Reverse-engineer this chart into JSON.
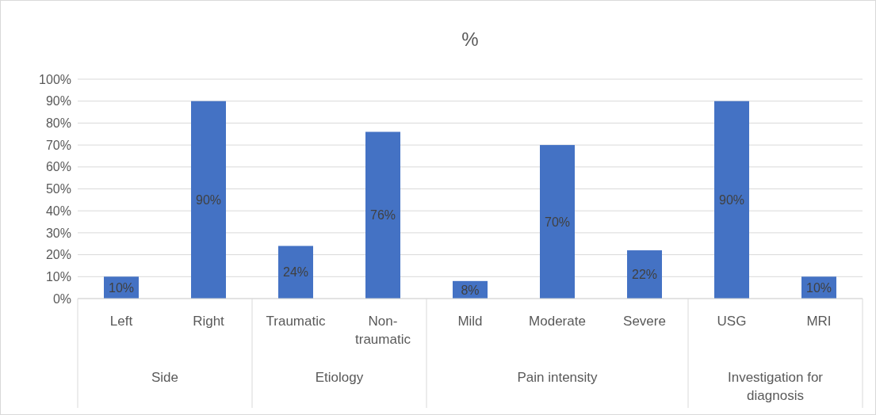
{
  "chart_data": {
    "type": "bar",
    "title": "%",
    "categories": [
      "Left",
      "Right",
      "Traumatic",
      "Non-traumatic",
      "Mild",
      "Moderate",
      "Severe",
      "USG",
      "MRI"
    ],
    "values": [
      10,
      90,
      24,
      76,
      8,
      70,
      22,
      90,
      10
    ],
    "value_labels": [
      "10%",
      "90%",
      "24%",
      "76%",
      "8%",
      "70%",
      "22%",
      "90%",
      "10%"
    ],
    "color": "#4472c4",
    "ylim": [
      0,
      100
    ],
    "yticks": [
      {
        "value": 0,
        "label": "0%"
      },
      {
        "value": 10,
        "label": "10%"
      },
      {
        "value": 20,
        "label": "20%"
      },
      {
        "value": 30,
        "label": "30%"
      },
      {
        "value": 40,
        "label": "40%"
      },
      {
        "value": 50,
        "label": "50%"
      },
      {
        "value": 60,
        "label": "60%"
      },
      {
        "value": 70,
        "label": "70%"
      },
      {
        "value": 80,
        "label": "80%"
      },
      {
        "value": 90,
        "label": "90%"
      },
      {
        "value": 100,
        "label": "100%"
      }
    ],
    "grid": "y",
    "annotations": [
      "Side",
      "Etiology",
      "Pain intensity",
      "Investigation for diagnosis"
    ]
  }
}
